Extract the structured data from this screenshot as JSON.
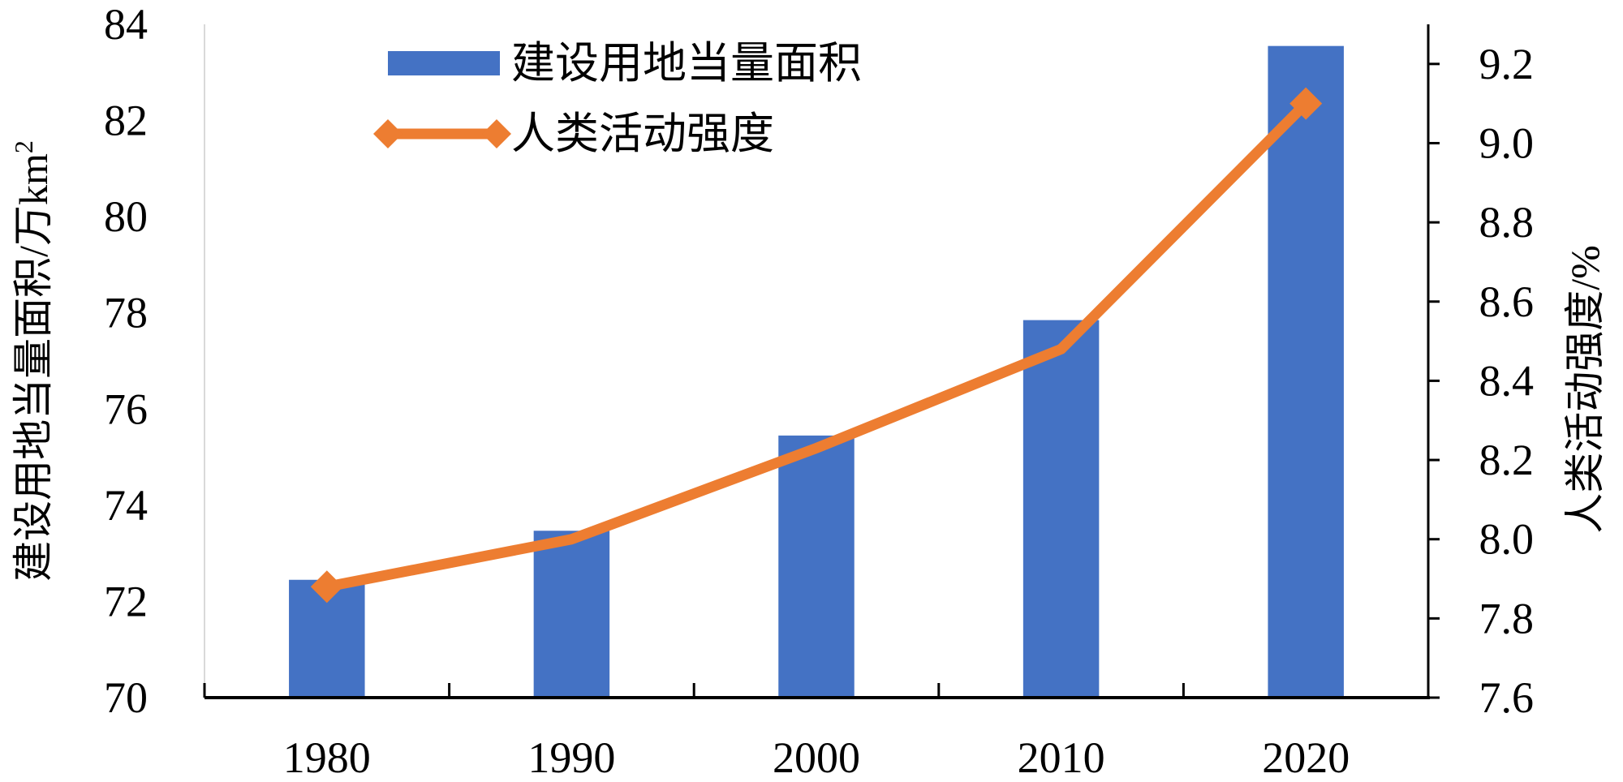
{
  "chart_data": {
    "type": "bar+line",
    "categories": [
      "1980",
      "1990",
      "2000",
      "2010",
      "2020"
    ],
    "series": [
      {
        "name": "建设用地当量面积",
        "type": "bar",
        "axis": "left",
        "color": "#4472C4",
        "values": [
          72.45,
          73.47,
          75.45,
          77.85,
          83.55
        ]
      },
      {
        "name": "人类活动强度",
        "type": "line",
        "axis": "right",
        "color": "#ED7D31",
        "marker": "diamond",
        "values": [
          7.88,
          8.0,
          8.23,
          8.48,
          9.1
        ]
      }
    ],
    "ylabel_left": "建设用地当量面积/万km",
    "ylabel_left_sup": "2",
    "ylabel_right": "人类活动强度/%",
    "ylim_left": [
      70,
      84
    ],
    "yticks_left": [
      "70",
      "72",
      "74",
      "76",
      "78",
      "80",
      "82",
      "84"
    ],
    "ylim_right": [
      7.6,
      9.3
    ],
    "yticks_right": [
      "7.6",
      "7.8",
      "8.0",
      "8.2",
      "8.4",
      "8.6",
      "8.8",
      "9.0",
      "9.2"
    ],
    "legend_position": "top-left",
    "grid": false
  }
}
